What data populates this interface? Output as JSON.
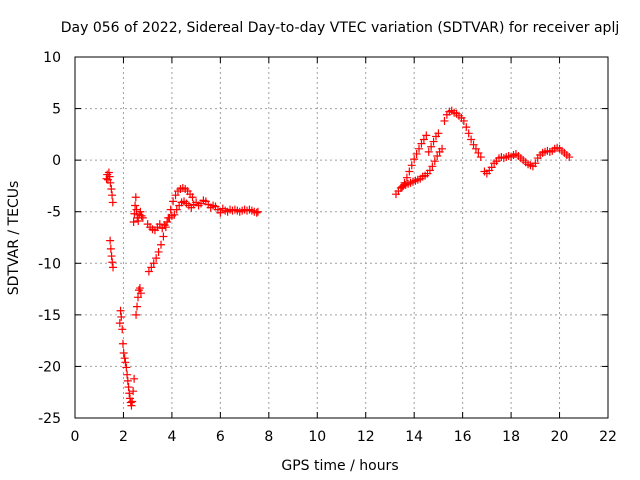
{
  "chart_data": {
    "type": "scatter",
    "title": "Day 056 of 2022, Sidereal Day-to-day VTEC variation (SDTVAR) for receiver aplj",
    "xlabel": "GPS time / hours",
    "ylabel": "SDTVAR / TECUs",
    "xlim": [
      0,
      22
    ],
    "ylim": [
      -25,
      10
    ],
    "x_ticks": [
      "0",
      "2",
      "4",
      "6",
      "8",
      "10",
      "12",
      "14",
      "16",
      "18",
      "20",
      "22"
    ],
    "y_ticks": [
      "10",
      "5",
      "0",
      "-5",
      "-10",
      "-15",
      "-20",
      "-25"
    ],
    "grid": true,
    "marker": "plus",
    "color": "#ff0000",
    "series": [
      {
        "name": "SDTVAR",
        "points": [
          [
            1.3,
            -1.8
          ],
          [
            1.33,
            -1.4
          ],
          [
            1.36,
            -1.9
          ],
          [
            1.4,
            -1.2
          ],
          [
            1.43,
            -1.6
          ],
          [
            1.46,
            -2.2
          ],
          [
            1.5,
            -2.8
          ],
          [
            1.53,
            -3.4
          ],
          [
            1.56,
            -4.1
          ],
          [
            1.45,
            -7.8
          ],
          [
            1.48,
            -8.6
          ],
          [
            1.51,
            -9.3
          ],
          [
            1.54,
            -9.9
          ],
          [
            1.57,
            -10.4
          ],
          [
            1.85,
            -15.8
          ],
          [
            1.88,
            -14.6
          ],
          [
            1.91,
            -15.2
          ],
          [
            1.95,
            -16.4
          ],
          [
            1.98,
            -17.8
          ],
          [
            2.01,
            -18.7
          ],
          [
            2.05,
            -19.2
          ],
          [
            2.08,
            -19.6
          ],
          [
            2.12,
            -20.1
          ],
          [
            2.15,
            -20.8
          ],
          [
            2.18,
            -21.4
          ],
          [
            2.21,
            -22.0
          ],
          [
            2.24,
            -22.6
          ],
          [
            2.27,
            -23.1
          ],
          [
            2.3,
            -23.5
          ],
          [
            2.33,
            -23.8
          ],
          [
            2.36,
            -23.4
          ],
          [
            2.4,
            -22.4
          ],
          [
            2.44,
            -21.2
          ],
          [
            2.42,
            -6.0
          ],
          [
            2.45,
            -5.2
          ],
          [
            2.48,
            -4.4
          ],
          [
            2.51,
            -3.6
          ],
          [
            2.54,
            -4.8
          ],
          [
            2.57,
            -5.6
          ],
          [
            2.61,
            -5.9
          ],
          [
            2.65,
            -5.3
          ],
          [
            2.7,
            -5.0
          ],
          [
            2.75,
            -5.4
          ],
          [
            2.8,
            -5.6
          ],
          [
            2.52,
            -15.0
          ],
          [
            2.56,
            -14.2
          ],
          [
            2.6,
            -13.3
          ],
          [
            2.64,
            -12.6
          ],
          [
            2.68,
            -12.4
          ],
          [
            2.72,
            -12.9
          ],
          [
            3.0,
            -6.2
          ],
          [
            3.1,
            -6.5
          ],
          [
            3.2,
            -6.7
          ],
          [
            3.3,
            -6.8
          ],
          [
            3.4,
            -6.5
          ],
          [
            3.5,
            -6.2
          ],
          [
            3.6,
            -6.6
          ],
          [
            3.7,
            -6.3
          ],
          [
            3.8,
            -6.0
          ],
          [
            3.9,
            -5.6
          ],
          [
            4.0,
            -5.4
          ],
          [
            4.1,
            -5.3
          ],
          [
            3.05,
            -10.8
          ],
          [
            3.15,
            -10.4
          ],
          [
            3.25,
            -10.0
          ],
          [
            3.35,
            -9.5
          ],
          [
            3.45,
            -8.9
          ],
          [
            3.55,
            -8.2
          ],
          [
            3.65,
            -7.4
          ],
          [
            3.75,
            -6.5
          ],
          [
            3.85,
            -5.6
          ],
          [
            3.95,
            -4.8
          ],
          [
            4.05,
            -4.0
          ],
          [
            4.15,
            -3.4
          ],
          [
            4.25,
            -3.0
          ],
          [
            4.35,
            -2.8
          ],
          [
            4.45,
            -2.7
          ],
          [
            4.55,
            -2.8
          ],
          [
            4.65,
            -3.0
          ],
          [
            4.75,
            -3.3
          ],
          [
            4.85,
            -3.6
          ],
          [
            4.2,
            -4.8
          ],
          [
            4.3,
            -4.4
          ],
          [
            4.4,
            -4.1
          ],
          [
            4.5,
            -4.0
          ],
          [
            4.6,
            -4.2
          ],
          [
            4.7,
            -4.4
          ],
          [
            4.8,
            -4.6
          ],
          [
            4.9,
            -4.3
          ],
          [
            5.0,
            -4.1
          ],
          [
            5.1,
            -4.4
          ],
          [
            5.2,
            -4.2
          ],
          [
            5.3,
            -3.9
          ],
          [
            5.4,
            -4.0
          ],
          [
            5.5,
            -4.3
          ],
          [
            5.6,
            -4.6
          ],
          [
            5.7,
            -4.4
          ],
          [
            5.8,
            -4.5
          ],
          [
            5.9,
            -4.8
          ],
          [
            6.0,
            -5.1
          ],
          [
            6.1,
            -4.7
          ],
          [
            6.2,
            -4.9
          ],
          [
            6.3,
            -5.0
          ],
          [
            6.4,
            -4.8
          ],
          [
            6.5,
            -4.9
          ],
          [
            6.6,
            -4.8
          ],
          [
            6.7,
            -4.9
          ],
          [
            6.8,
            -5.0
          ],
          [
            6.9,
            -4.9
          ],
          [
            7.0,
            -4.8
          ],
          [
            7.1,
            -4.9
          ],
          [
            7.2,
            -4.8
          ],
          [
            7.3,
            -4.9
          ],
          [
            7.4,
            -5.0
          ],
          [
            7.5,
            -5.1
          ],
          [
            7.55,
            -5.0
          ],
          [
            13.25,
            -3.3
          ],
          [
            13.35,
            -3.0
          ],
          [
            13.45,
            -2.7
          ],
          [
            13.55,
            -2.5
          ],
          [
            13.65,
            -2.4
          ],
          [
            13.75,
            -2.3
          ],
          [
            13.85,
            -2.2
          ],
          [
            13.95,
            -2.1
          ],
          [
            14.05,
            -2.0
          ],
          [
            14.15,
            -1.9
          ],
          [
            14.25,
            -1.8
          ],
          [
            14.35,
            -1.6
          ],
          [
            14.45,
            -1.5
          ],
          [
            14.55,
            -1.3
          ],
          [
            14.65,
            -1.0
          ],
          [
            14.75,
            -0.6
          ],
          [
            14.85,
            -0.1
          ],
          [
            13.5,
            -2.6
          ],
          [
            13.6,
            -2.2
          ],
          [
            13.7,
            -1.7
          ],
          [
            13.8,
            -1.1
          ],
          [
            13.9,
            -0.5
          ],
          [
            14.0,
            0.1
          ],
          [
            14.1,
            0.6
          ],
          [
            14.2,
            1.1
          ],
          [
            14.3,
            1.6
          ],
          [
            14.4,
            2.0
          ],
          [
            14.5,
            2.4
          ],
          [
            14.6,
            0.8
          ],
          [
            14.7,
            1.3
          ],
          [
            14.8,
            1.8
          ],
          [
            14.9,
            2.3
          ],
          [
            15.0,
            2.6
          ],
          [
            14.95,
            0.4
          ],
          [
            15.05,
            0.8
          ],
          [
            15.15,
            1.1
          ],
          [
            15.25,
            3.8
          ],
          [
            15.35,
            4.4
          ],
          [
            15.45,
            4.7
          ],
          [
            15.55,
            4.8
          ],
          [
            15.65,
            4.6
          ],
          [
            15.75,
            4.5
          ],
          [
            15.85,
            4.3
          ],
          [
            15.95,
            4.1
          ],
          [
            16.05,
            3.8
          ],
          [
            16.15,
            3.2
          ],
          [
            16.25,
            2.6
          ],
          [
            16.35,
            2.0
          ],
          [
            16.45,
            1.5
          ],
          [
            16.55,
            1.1
          ],
          [
            16.65,
            0.7
          ],
          [
            16.75,
            0.3
          ],
          [
            16.9,
            -1.1
          ],
          [
            17.0,
            -1.3
          ],
          [
            17.1,
            -1.0
          ],
          [
            17.2,
            -0.7
          ],
          [
            17.3,
            -0.3
          ],
          [
            17.4,
            -0.1
          ],
          [
            17.5,
            0.2
          ],
          [
            17.6,
            0.3
          ],
          [
            17.7,
            0.2
          ],
          [
            17.8,
            0.3
          ],
          [
            17.9,
            0.4
          ],
          [
            18.0,
            0.3
          ],
          [
            18.1,
            0.5
          ],
          [
            18.2,
            0.6
          ],
          [
            18.3,
            0.4
          ],
          [
            18.4,
            0.2
          ],
          [
            18.5,
            0.0
          ],
          [
            18.6,
            -0.2
          ],
          [
            18.7,
            -0.4
          ],
          [
            18.8,
            -0.5
          ],
          [
            18.9,
            -0.6
          ],
          [
            19.0,
            -0.3
          ],
          [
            19.1,
            0.2
          ],
          [
            19.2,
            0.5
          ],
          [
            19.3,
            0.7
          ],
          [
            19.4,
            0.8
          ],
          [
            19.5,
            0.9
          ],
          [
            19.6,
            0.8
          ],
          [
            19.7,
            0.9
          ],
          [
            19.8,
            1.1
          ],
          [
            19.9,
            1.2
          ],
          [
            20.0,
            1.1
          ],
          [
            20.1,
            0.9
          ],
          [
            20.2,
            0.7
          ],
          [
            20.3,
            0.5
          ],
          [
            20.4,
            0.3
          ]
        ]
      }
    ]
  }
}
